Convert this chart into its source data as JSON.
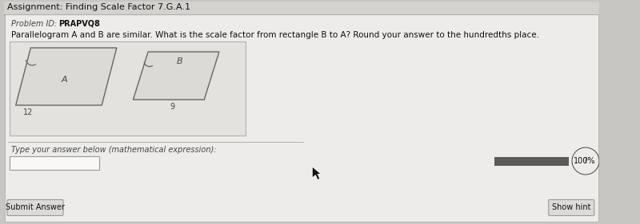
{
  "title": "Assignment: Finding Scale Factor 7.G.A.1",
  "problem_id": "Problem ID:   PRAPVQ8",
  "question": "Parallelogram A and B are similar. What is the scale factor from rectangle B to A? Round your answer to the hundredths place.",
  "label_a": "A",
  "label_b": "B",
  "measure_a": "12",
  "measure_b": "9",
  "answer_label": "Type your answer below (mathematical expression):",
  "submit_btn": "Submit Answer",
  "hint_btn": "Show hint",
  "percent_label": "100%",
  "bg_outer": "#c8c6c2",
  "bg_main": "#edecea",
  "title_bar_bg": "#d4d2ce",
  "title_bar_border": "#b0aeaa",
  "panel_bg": "#edecea",
  "inner_box_bg": "#e4e2de",
  "inner_box_border": "#b0b0b0",
  "shape_fill": "#dcdad5",
  "shape_stroke": "#666666",
  "answer_box_bg": "#f8f8f6",
  "answer_box_border": "#999999",
  "progress_bar_color": "#5a5a58",
  "submit_btn_bg": "#dddbd7",
  "submit_btn_border": "#999999",
  "hint_btn_bg": "#dddbd7",
  "hint_btn_border": "#999999",
  "sep_line_color": "#b0b0b0",
  "text_dark": "#111111",
  "text_mid": "#444444",
  "text_light": "#666666"
}
